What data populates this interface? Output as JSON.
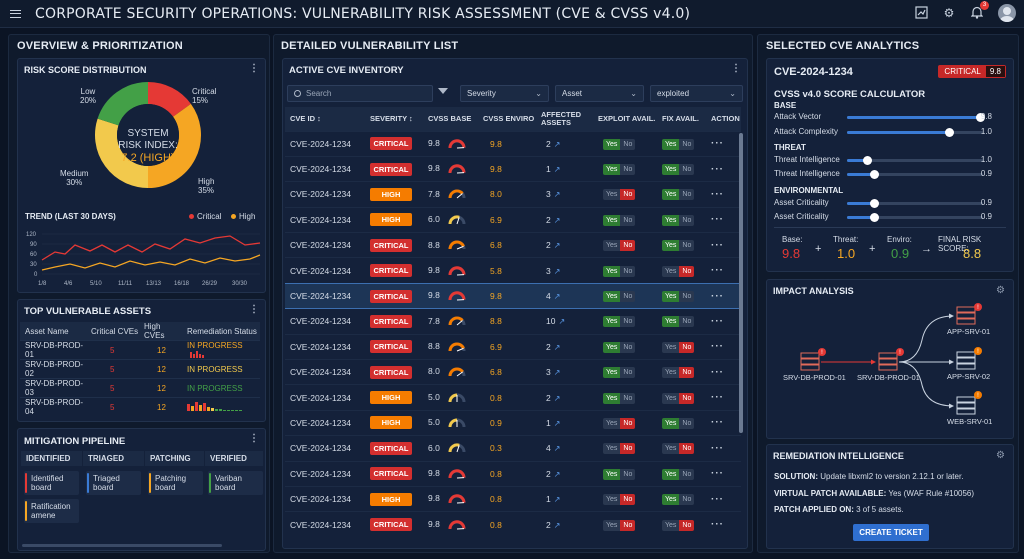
{
  "header": {
    "title": "CORPORATE SECURITY OPERATIONS: VULNERABILITY RISK ASSESSMENT (CVE & CVSS v4.0)",
    "notification_count": "3"
  },
  "left": {
    "title": "OVERVIEW & PRIORITIZATION",
    "risk": {
      "title": "RISK SCORE DISTRIBUTION",
      "center_lines": [
        "SYSTEM",
        "RISK INDEX:"
      ],
      "index_value": "7.2 (HIGH)",
      "slices": [
        {
          "name": "Critical",
          "pct": "15%",
          "value": 15,
          "color": "#e53935"
        },
        {
          "name": "High",
          "pct": "35%",
          "value": 35,
          "color": "#f5a623"
        },
        {
          "name": "Medium",
          "pct": "30%",
          "value": 30,
          "color": "#f2c94c"
        },
        {
          "name": "Low",
          "pct": "20%",
          "value": 20,
          "color": "#43a047"
        }
      ]
    },
    "trend": {
      "title": "TREND (LAST 30 DAYS)",
      "legend": [
        "Critical",
        "High"
      ]
    },
    "assets": {
      "title": "TOP VULNERABLE ASSETS",
      "headers": [
        "Asset Name",
        "Critical CVEs",
        "High CVEs",
        "Remediation Status"
      ],
      "rows": [
        {
          "name": "SRV-DB-PROD-01",
          "crit": "5",
          "high": "12",
          "status": "IN PROGRESS"
        },
        {
          "name": "SRV-DB-PROD-02",
          "crit": "5",
          "high": "12",
          "status": "IN PROGRESS"
        },
        {
          "name": "SRV-DB-PROD-03",
          "crit": "5",
          "high": "12",
          "status": "IN PROGRESS"
        },
        {
          "name": "SRV-DB-PROD-04",
          "crit": "5",
          "high": "12",
          "status": ""
        }
      ]
    },
    "pipeline": {
      "title": "MITIGATION PIPELINE",
      "columns": [
        "IDENTIFIED",
        "TRIAGED",
        "PATCHING",
        "VERIFIED"
      ],
      "cards": [
        [
          "Identified board",
          "Ratification amene"
        ],
        [
          "Triaged board"
        ],
        [
          "Patching board"
        ],
        [
          "Variban board"
        ]
      ]
    }
  },
  "middle": {
    "title": "DETAILED VULNERABILITY LIST",
    "inventory_title": "ACTIVE CVE INVENTORY",
    "search_placeholder": "Search",
    "filters": [
      "Severity",
      "Asset",
      "exploited"
    ],
    "headers": [
      "CVE ID",
      "SEVERITY",
      "CVSS BASE",
      "CVSS ENVIRO",
      "AFFECTED ASSETS",
      "EXPLOIT AVAIL.",
      "FIX AVAIL.",
      "ACTION"
    ],
    "rows": [
      {
        "id": "CVE-2024-1234",
        "sev": "CRITICAL",
        "base": "9.8",
        "env": "9.8",
        "aff": "2",
        "exploit": "Yes",
        "fix": "Yes"
      },
      {
        "id": "CVE-2024-1234",
        "sev": "CRITICAL",
        "base": "9.8",
        "env": "9.8",
        "aff": "1",
        "exploit": "Yes",
        "fix": "Yes"
      },
      {
        "id": "CVE-2024-1234",
        "sev": "HIGH",
        "base": "7.8",
        "env": "8.0",
        "aff": "3",
        "exploit": "No",
        "fix": "Yes"
      },
      {
        "id": "CVE-2024-1234",
        "sev": "HIGH",
        "base": "6.0",
        "env": "6.9",
        "aff": "2",
        "exploit": "Yes",
        "fix": "Yes"
      },
      {
        "id": "CVE-2024-1234",
        "sev": "CRITICAL",
        "base": "8.8",
        "env": "6.8",
        "aff": "2",
        "exploit": "No",
        "fix": "Yes"
      },
      {
        "id": "CVE-2024-1234",
        "sev": "CRITICAL",
        "base": "9.8",
        "env": "5.8",
        "aff": "3",
        "exploit": "Yes",
        "fix": "No"
      },
      {
        "id": "CVE-2024-1234",
        "sev": "CRITICAL",
        "base": "9.8",
        "env": "9.8",
        "aff": "4",
        "exploit": "Yes",
        "fix": "Yes"
      },
      {
        "id": "CVE-2024-1234",
        "sev": "CRITICAL",
        "base": "7.8",
        "env": "8.8",
        "aff": "10",
        "exploit": "Yes",
        "fix": "Yes"
      },
      {
        "id": "CVE-2024-1234",
        "sev": "CRITICAL",
        "base": "8.8",
        "env": "6.9",
        "aff": "2",
        "exploit": "Yes",
        "fix": "No"
      },
      {
        "id": "CVE-2024-1234",
        "sev": "CRITICAL",
        "base": "8.0",
        "env": "6.8",
        "aff": "3",
        "exploit": "Yes",
        "fix": "No"
      },
      {
        "id": "CVE-2024-1234",
        "sev": "HIGH",
        "base": "5.0",
        "env": "0.8",
        "aff": "2",
        "exploit": "Yes",
        "fix": "No"
      },
      {
        "id": "CVE-2024-1234",
        "sev": "HIGH",
        "base": "5.0",
        "env": "0.9",
        "aff": "1",
        "exploit": "No",
        "fix": "Yes"
      },
      {
        "id": "CVE-2024-1234",
        "sev": "CRITICAL",
        "base": "6.0",
        "env": "0.3",
        "aff": "4",
        "exploit": "No",
        "fix": "No"
      },
      {
        "id": "CVE-2024-1234",
        "sev": "CRITICAL",
        "base": "9.8",
        "env": "0.8",
        "aff": "2",
        "exploit": "Yes",
        "fix": "Yes"
      },
      {
        "id": "CVE-2024-1234",
        "sev": "HIGH",
        "base": "9.8",
        "env": "0.8",
        "aff": "1",
        "exploit": "No",
        "fix": "Yes"
      },
      {
        "id": "CVE-2024-1234",
        "sev": "CRITICAL",
        "base": "9.8",
        "env": "0.8",
        "aff": "2",
        "exploit": "No",
        "fix": "No"
      }
    ]
  },
  "right": {
    "title": "SELECTED CVE ANALYTICS",
    "cve_id": "CVE-2024-1234",
    "sev": "CRITICAL",
    "score": "9.8",
    "calc_title": "CVSS v4.0 SCORE CALCULATOR",
    "groups": [
      {
        "name": "BASE",
        "items": [
          {
            "label": "Attack Vector",
            "value": "9.8",
            "level": 0.98
          },
          {
            "label": "Attack Complexity",
            "value": "1.0",
            "level": 0.75
          }
        ]
      },
      {
        "name": "THREAT",
        "items": [
          {
            "label": "Threat Intelligence",
            "value": "1.0",
            "level": 0.15
          },
          {
            "label": "Threat Intelligence",
            "value": "0.9",
            "level": 0.2
          }
        ]
      },
      {
        "name": "ENVIRONMENTAL",
        "items": [
          {
            "label": "Asset Criticality",
            "value": "0.9",
            "level": 0.2
          },
          {
            "label": "Asset Criticality",
            "value": "0.9",
            "level": 0.2
          }
        ]
      }
    ],
    "scores": {
      "base_label": "Base:",
      "base": "9.8",
      "threat_label": "Threat:",
      "threat": "1.0",
      "enviro_label": "Enviro:",
      "enviro": "0.9",
      "final_label": "FINAL RISK SCORE:",
      "final": "8.8"
    },
    "impact": {
      "title": "IMPACT ANALYSIS",
      "nodes": [
        "SRV-DB-PROD-01",
        "SRV-DB-PROD-01",
        "APP-SRV-01",
        "APP-SRV-02",
        "WEB-SRV-01"
      ]
    },
    "remediation": {
      "title": "REMEDIATION INTELLIGENCE",
      "solution_label": "SOLUTION:",
      "solution": "Update libxml2 to version 2.12.1 or later.",
      "vpatch_label": "VIRTUAL PATCH AVAILABLE:",
      "vpatch": "Yes (WAF Rule #10056)",
      "applied_label": "PATCH APPLIED ON:",
      "applied": "3 of 5 assets.",
      "button": "CREATE TICKET"
    }
  },
  "colors": {
    "critical": "#e53935",
    "high": "#f5a623",
    "medium": "#f2c94c",
    "low": "#43a047",
    "accent": "#2f6fd0"
  }
}
